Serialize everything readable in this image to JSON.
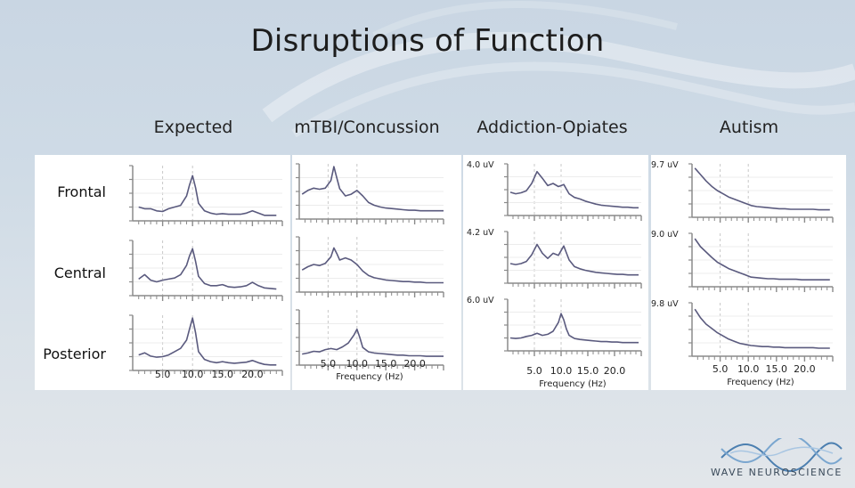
{
  "slide": {
    "title": "Disruptions of Function",
    "row_labels": [
      "Frontal",
      "Central",
      "Posterior"
    ],
    "logo_text": "WAVE NEUROSCIENCE"
  },
  "colors": {
    "trace": "#5a5a7e",
    "axis": "#8a8a8a",
    "panel_bg": "#ffffff"
  },
  "chart_data": [
    {
      "type": "line",
      "title": "Expected",
      "xlabel": "",
      "xticks": [
        "5.0",
        "10.0",
        "15.0",
        "20.0"
      ],
      "xlim": [
        0,
        25
      ],
      "grid": true,
      "subplots": [
        {
          "name": "Frontal",
          "scale_label": "",
          "x": [
            1,
            2,
            3,
            4,
            5,
            6,
            7,
            8,
            9,
            9.5,
            10,
            10.5,
            11,
            12,
            13,
            14,
            15,
            16,
            17,
            18,
            19,
            20,
            21,
            22,
            23,
            24
          ],
          "y": [
            0.25,
            0.22,
            0.22,
            0.18,
            0.17,
            0.22,
            0.25,
            0.28,
            0.45,
            0.65,
            0.82,
            0.6,
            0.32,
            0.18,
            0.14,
            0.12,
            0.13,
            0.12,
            0.12,
            0.12,
            0.14,
            0.18,
            0.14,
            0.1,
            0.1,
            0.1
          ]
        },
        {
          "name": "Central",
          "scale_label": "",
          "x": [
            1,
            2,
            3,
            4,
            5,
            6,
            7,
            8,
            9,
            9.5,
            10,
            10.5,
            11,
            12,
            13,
            14,
            15,
            16,
            17,
            18,
            19,
            20,
            21,
            22,
            23,
            24
          ],
          "y": [
            0.3,
            0.38,
            0.28,
            0.25,
            0.28,
            0.3,
            0.32,
            0.38,
            0.55,
            0.72,
            0.85,
            0.62,
            0.35,
            0.22,
            0.18,
            0.18,
            0.2,
            0.16,
            0.15,
            0.16,
            0.18,
            0.24,
            0.18,
            0.14,
            0.13,
            0.12
          ]
        },
        {
          "name": "Posterior",
          "scale_label": "",
          "x": [
            1,
            2,
            3,
            4,
            5,
            6,
            7,
            8,
            9,
            9.5,
            10,
            10.5,
            11,
            12,
            13,
            14,
            15,
            16,
            17,
            18,
            19,
            20,
            21,
            22,
            23,
            24
          ],
          "y": [
            0.28,
            0.32,
            0.26,
            0.24,
            0.25,
            0.28,
            0.34,
            0.4,
            0.55,
            0.75,
            0.95,
            0.68,
            0.34,
            0.2,
            0.16,
            0.14,
            0.16,
            0.14,
            0.13,
            0.14,
            0.15,
            0.18,
            0.14,
            0.11,
            0.1,
            0.1
          ]
        }
      ]
    },
    {
      "type": "line",
      "title": "mTBI/Concussion",
      "xlabel": "Frequency (Hz)",
      "xticks": [
        "5.0",
        "10.0",
        "15.0",
        "20.0"
      ],
      "xlim": [
        0,
        25
      ],
      "grid": true,
      "subplots": [
        {
          "name": "Frontal",
          "scale_label": "",
          "x": [
            0.5,
            1.5,
            2.5,
            3.5,
            4.5,
            5.5,
            6,
            6.5,
            7,
            8,
            9,
            10,
            11,
            12,
            13,
            14,
            15,
            16,
            17,
            18,
            19,
            20,
            21,
            22,
            23,
            24,
            25
          ],
          "y": [
            0.45,
            0.52,
            0.56,
            0.54,
            0.56,
            0.7,
            0.95,
            0.75,
            0.55,
            0.42,
            0.45,
            0.52,
            0.42,
            0.3,
            0.25,
            0.22,
            0.2,
            0.19,
            0.18,
            0.17,
            0.16,
            0.16,
            0.15,
            0.15,
            0.15,
            0.15,
            0.15
          ]
        },
        {
          "name": "Central",
          "scale_label": "",
          "x": [
            0.5,
            1.5,
            2.5,
            3.5,
            4.5,
            5.5,
            6,
            6.5,
            7,
            8,
            9,
            10,
            11,
            12,
            13,
            14,
            15,
            16,
            17,
            18,
            19,
            20,
            21,
            22,
            23,
            24,
            25
          ],
          "y": [
            0.4,
            0.46,
            0.5,
            0.48,
            0.52,
            0.64,
            0.8,
            0.7,
            0.58,
            0.62,
            0.58,
            0.5,
            0.38,
            0.3,
            0.26,
            0.24,
            0.22,
            0.21,
            0.2,
            0.19,
            0.19,
            0.18,
            0.18,
            0.17,
            0.17,
            0.17,
            0.17
          ]
        },
        {
          "name": "Posterior",
          "scale_label": "",
          "x": [
            0.5,
            1.5,
            2.5,
            3.5,
            4.5,
            5.5,
            6.5,
            7.5,
            8.5,
            9.5,
            10,
            10.5,
            11,
            12,
            13,
            14,
            15,
            16,
            17,
            18,
            19,
            20,
            21,
            22,
            23,
            24,
            25
          ],
          "y": [
            0.2,
            0.22,
            0.25,
            0.24,
            0.28,
            0.3,
            0.28,
            0.33,
            0.4,
            0.55,
            0.65,
            0.5,
            0.32,
            0.24,
            0.22,
            0.21,
            0.2,
            0.19,
            0.18,
            0.18,
            0.17,
            0.17,
            0.17,
            0.16,
            0.16,
            0.16,
            0.16
          ]
        }
      ]
    },
    {
      "type": "line",
      "title": "Addiction-Opiates",
      "xlabel": "Frequency (Hz)",
      "xticks": [
        "5.0",
        "10.0",
        "15.0",
        "20.0"
      ],
      "xlim": [
        0,
        25
      ],
      "grid": true,
      "subplots": [
        {
          "name": "Frontal",
          "scale_label": "4.0 uV",
          "x": [
            0.5,
            1.5,
            2.5,
            3.5,
            4.5,
            5.5,
            6.5,
            7.5,
            8.5,
            9.5,
            10.5,
            11.5,
            12.5,
            13.5,
            14.5,
            15.5,
            16.5,
            17.5,
            18.5,
            19.5,
            20.5,
            21.5,
            22.5,
            23.5,
            24.5
          ],
          "y": [
            0.45,
            0.42,
            0.44,
            0.48,
            0.62,
            0.85,
            0.72,
            0.58,
            0.62,
            0.56,
            0.6,
            0.42,
            0.35,
            0.32,
            0.28,
            0.25,
            0.22,
            0.2,
            0.19,
            0.18,
            0.17,
            0.16,
            0.16,
            0.15,
            0.15
          ]
        },
        {
          "name": "Central",
          "scale_label": "4.2 uV",
          "x": [
            0.5,
            1.5,
            2.5,
            3.5,
            4.5,
            5.5,
            6.5,
            7.5,
            8.5,
            9.5,
            10.5,
            11.5,
            12.5,
            13.5,
            14.5,
            15.5,
            16.5,
            17.5,
            18.5,
            19.5,
            20.5,
            21.5,
            22.5,
            23.5,
            24.5
          ],
          "y": [
            0.38,
            0.36,
            0.38,
            0.42,
            0.55,
            0.75,
            0.58,
            0.48,
            0.58,
            0.54,
            0.72,
            0.45,
            0.32,
            0.28,
            0.25,
            0.23,
            0.21,
            0.2,
            0.19,
            0.18,
            0.17,
            0.17,
            0.16,
            0.16,
            0.16
          ]
        },
        {
          "name": "Posterior",
          "scale_label": "6.0 uV",
          "x": [
            0.5,
            1.5,
            2.5,
            3.5,
            4.5,
            5.5,
            6.5,
            7.5,
            8.5,
            9.5,
            10,
            10.5,
            11,
            11.5,
            12.5,
            13.5,
            14.5,
            15.5,
            16.5,
            17.5,
            18.5,
            19.5,
            20.5,
            21.5,
            22.5,
            23.5,
            24.5
          ],
          "y": [
            0.25,
            0.24,
            0.25,
            0.28,
            0.3,
            0.34,
            0.3,
            0.32,
            0.38,
            0.55,
            0.72,
            0.6,
            0.42,
            0.3,
            0.24,
            0.22,
            0.21,
            0.2,
            0.19,
            0.18,
            0.18,
            0.17,
            0.17,
            0.16,
            0.16,
            0.16,
            0.16
          ]
        }
      ]
    },
    {
      "type": "line",
      "title": "Autism",
      "xlabel": "Frequency (Hz)",
      "xticks": [
        "5.0",
        "10.0",
        "15.0",
        "20.0"
      ],
      "xlim": [
        0,
        25
      ],
      "grid": true,
      "subplots": [
        {
          "name": "Frontal",
          "scale_label": "9.7 uV",
          "x": [
            0.5,
            1.5,
            2.5,
            3.5,
            4.5,
            5.5,
            6.5,
            7.5,
            8.5,
            9.5,
            10.5,
            11.5,
            12.5,
            13.5,
            14.5,
            15.5,
            16.5,
            17.5,
            18.5,
            19.5,
            20.5,
            21.5,
            22.5,
            23.5,
            24.5
          ],
          "y": [
            0.92,
            0.8,
            0.68,
            0.58,
            0.5,
            0.44,
            0.38,
            0.34,
            0.3,
            0.26,
            0.22,
            0.2,
            0.19,
            0.18,
            0.17,
            0.16,
            0.16,
            0.15,
            0.15,
            0.15,
            0.15,
            0.15,
            0.14,
            0.14,
            0.14
          ]
        },
        {
          "name": "Central",
          "scale_label": "9.0 uV",
          "x": [
            0.5,
            1.5,
            2.5,
            3.5,
            4.5,
            5.5,
            6.5,
            7.5,
            8.5,
            9.5,
            10.5,
            11.5,
            12.5,
            13.5,
            14.5,
            15.5,
            16.5,
            17.5,
            18.5,
            19.5,
            20.5,
            21.5,
            22.5,
            23.5,
            24.5
          ],
          "y": [
            0.9,
            0.75,
            0.65,
            0.55,
            0.46,
            0.4,
            0.34,
            0.3,
            0.26,
            0.22,
            0.18,
            0.17,
            0.16,
            0.15,
            0.15,
            0.14,
            0.14,
            0.14,
            0.14,
            0.13,
            0.13,
            0.13,
            0.13,
            0.13,
            0.13
          ]
        },
        {
          "name": "Posterior",
          "scale_label": "9.8 uV",
          "x": [
            0.5,
            1.5,
            2.5,
            3.5,
            4.5,
            5.5,
            6.5,
            7.5,
            8.5,
            9.5,
            10.5,
            11.5,
            12.5,
            13.5,
            14.5,
            15.5,
            16.5,
            17.5,
            18.5,
            19.5,
            20.5,
            21.5,
            22.5,
            23.5,
            24.5
          ],
          "y": [
            0.88,
            0.72,
            0.6,
            0.52,
            0.44,
            0.38,
            0.32,
            0.28,
            0.24,
            0.22,
            0.2,
            0.19,
            0.18,
            0.18,
            0.17,
            0.17,
            0.16,
            0.16,
            0.16,
            0.16,
            0.16,
            0.16,
            0.15,
            0.15,
            0.15
          ]
        }
      ]
    }
  ]
}
